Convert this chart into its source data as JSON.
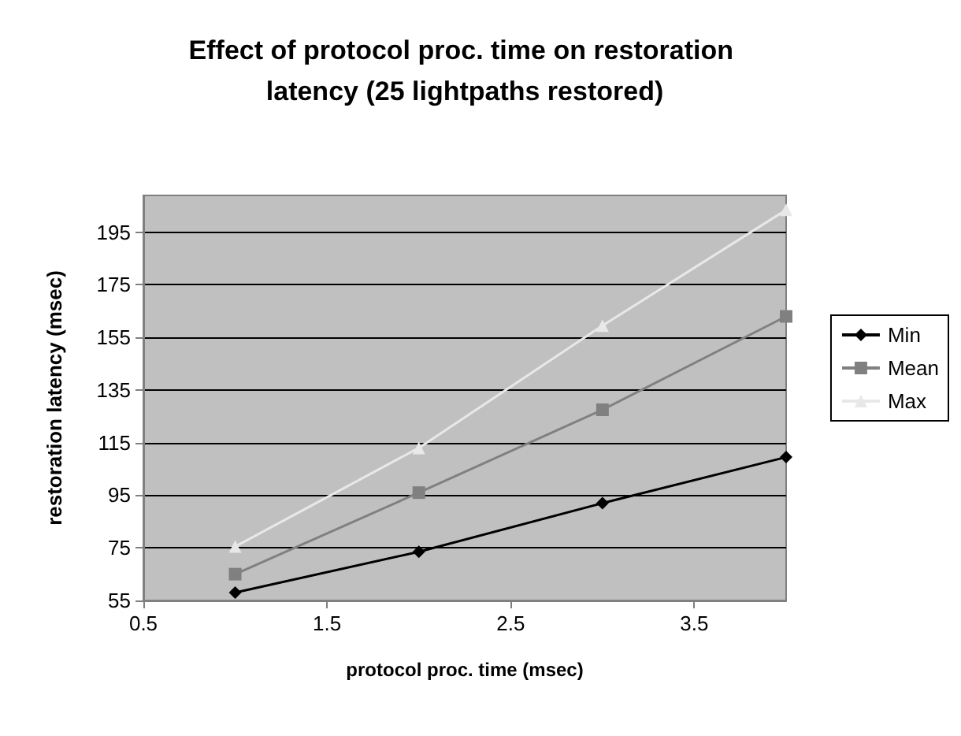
{
  "chart_data": {
    "type": "line",
    "title": "Effect of protocol proc. time on restoration latency (25 lightpaths restored)",
    "xlabel": "protocol proc. time (msec)",
    "ylabel": "restoration latency (msec)",
    "x": [
      1,
      2,
      3,
      4
    ],
    "series": [
      {
        "name": "Min",
        "color": "#000000",
        "marker": "diamond",
        "values": [
          58,
          73.5,
          92,
          109.5
        ]
      },
      {
        "name": "Mean",
        "color": "#808080",
        "marker": "square",
        "values": [
          65,
          96,
          127.5,
          163
        ]
      },
      {
        "name": "Max",
        "color": "#e8e8e8",
        "marker": "triangle",
        "values": [
          75.5,
          113,
          159.5,
          203.5
        ]
      }
    ],
    "xlim": [
      0.5,
      4
    ],
    "xticks": [
      0.5,
      1.5,
      2.5,
      3.5
    ],
    "ylim": [
      55,
      209
    ],
    "yticks": [
      55,
      75,
      95,
      115,
      135,
      155,
      175,
      195
    ],
    "grid": "y",
    "legend": "right"
  }
}
